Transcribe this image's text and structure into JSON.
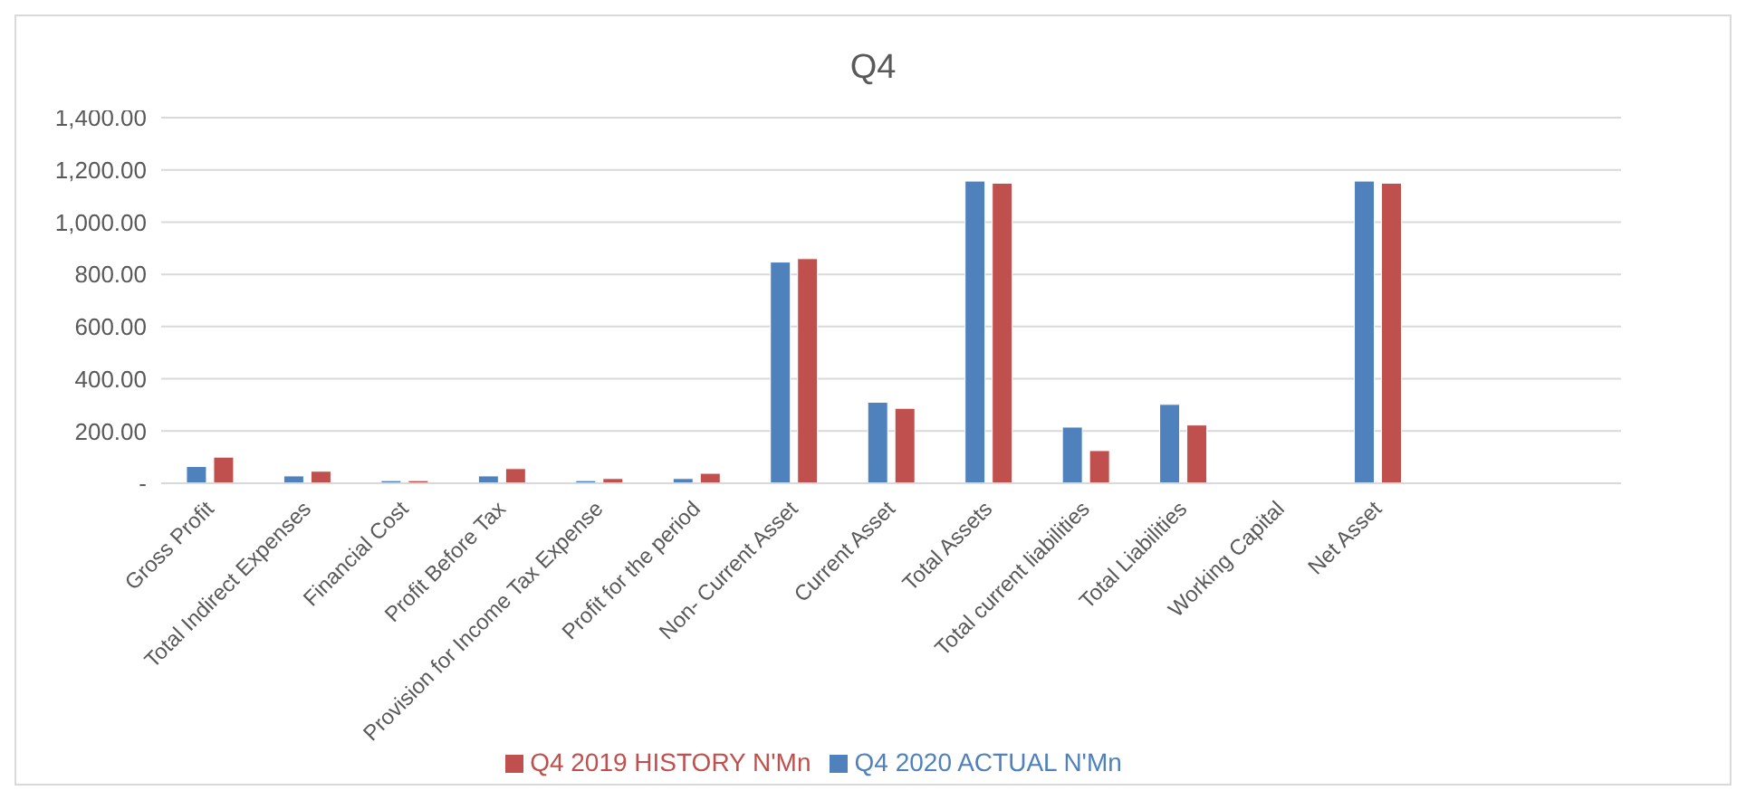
{
  "chart_data": {
    "type": "bar",
    "title": "Q4",
    "categories": [
      "Gross Profit",
      "Total Indirect Expenses",
      "Financial Cost",
      "Profit Before Tax",
      "Provision for Income Tax Expense",
      "Profit for the period",
      "Non- Current Asset",
      "Current Asset",
      "Total Assets",
      "Total current liabilities",
      "Total Liabilities",
      "Working Capital",
      "Net Asset",
      null,
      null
    ],
    "series": [
      {
        "name": "Q4 2020 ACTUAL N'Mn",
        "color": "#4f81bd",
        "values": [
          64,
          28,
          10,
          28,
          10,
          18,
          847,
          310,
          1157,
          215,
          302,
          null,
          1157,
          null,
          null
        ]
      },
      {
        "name": "Q4 2019 HISTORY N'Mn",
        "color": "#c0504d",
        "values": [
          100,
          46,
          10,
          56,
          18,
          38,
          860,
          287,
          1149,
          125,
          223,
          null,
          1149,
          null,
          null
        ]
      }
    ],
    "ylim": [
      0,
      1400
    ],
    "yticks": [
      {
        "value": 0,
        "label": "-"
      },
      {
        "value": 200,
        "label": "200.00"
      },
      {
        "value": 400,
        "label": "400.00"
      },
      {
        "value": 600,
        "label": "600.00"
      },
      {
        "value": 800,
        "label": "800.00"
      },
      {
        "value": 1000,
        "label": "1,000.00"
      },
      {
        "value": 1200,
        "label": "1,200.00"
      },
      {
        "value": 1400,
        "label": "1,400.00"
      }
    ],
    "grid": "y",
    "legend": "bottom"
  }
}
